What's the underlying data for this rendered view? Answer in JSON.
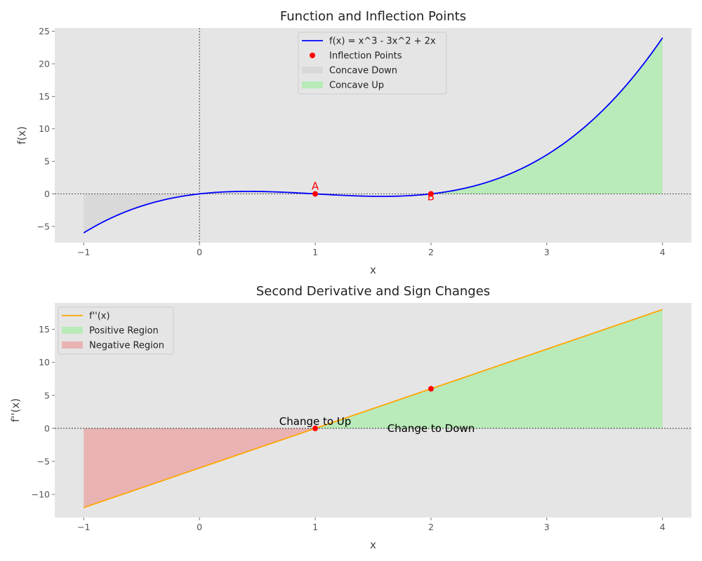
{
  "colors": {
    "axes_bg": "#e5e5e5",
    "f_line": "#0000ff",
    "fpp_line": "#ffa500",
    "inflection": "#ff0000",
    "concave_down": "#d9d9d9",
    "concave_up": "#b9eab9",
    "positive": "#b9eab9",
    "negative": "#e9b3b3"
  },
  "chart_data": [
    {
      "type": "line",
      "title": "Function and Inflection Points",
      "xlabel": "x",
      "ylabel": "f(x)",
      "xlim": [
        -1.25,
        4.25
      ],
      "ylim": [
        -7.5,
        25.5
      ],
      "xticks": [
        -1,
        0,
        1,
        2,
        3,
        4
      ],
      "yticks": [
        -5,
        0,
        5,
        10,
        15,
        20,
        25
      ],
      "tick_labels_x": [
        "−1",
        "0",
        "1",
        "2",
        "3",
        "4"
      ],
      "tick_labels_y": [
        "−5",
        "0",
        "5",
        "10",
        "15",
        "20",
        "25"
      ],
      "grid": false,
      "legend_position": "top-center",
      "series": [
        {
          "name": "f(x) = x^3 - 3x^2 + 2x",
          "kind": "line",
          "x_range": [
            -1,
            4
          ],
          "coefficients": [
            0,
            2,
            -3,
            1
          ]
        },
        {
          "name": "Inflection Points",
          "kind": "scatter",
          "x": [
            1,
            2
          ],
          "y": [
            0,
            0
          ],
          "labels": [
            "A",
            "B"
          ]
        },
        {
          "name": "Concave Down",
          "kind": "fill",
          "x_range": [
            -1,
            1
          ]
        },
        {
          "name": "Concave Up",
          "kind": "fill",
          "x_range": [
            2,
            4
          ]
        }
      ]
    },
    {
      "type": "line",
      "title": "Second Derivative and Sign Changes",
      "xlabel": "x",
      "ylabel": "f''(x)",
      "xlim": [
        -1.25,
        4.25
      ],
      "ylim": [
        -13.5,
        19.0
      ],
      "xticks": [
        -1,
        0,
        1,
        2,
        3,
        4
      ],
      "yticks": [
        -10,
        -5,
        0,
        5,
        10,
        15
      ],
      "tick_labels_x": [
        "−1",
        "0",
        "1",
        "2",
        "3",
        "4"
      ],
      "tick_labels_y": [
        "−10",
        "−5",
        "0",
        "5",
        "10",
        "15"
      ],
      "grid": false,
      "legend_position": "top-left",
      "series": [
        {
          "name": "f''(x)",
          "kind": "line",
          "x_range": [
            -1,
            4
          ],
          "coefficients": [
            -6,
            6
          ]
        },
        {
          "name": "Positive Region",
          "kind": "fill",
          "x_range": [
            1,
            4
          ]
        },
        {
          "name": "Negative Region",
          "kind": "fill",
          "x_range": [
            -1,
            1
          ]
        },
        {
          "kind": "scatter",
          "x": [
            1,
            2
          ],
          "y": [
            0,
            6
          ]
        }
      ],
      "annotations": [
        {
          "text": "Change to Up",
          "x": 1,
          "y": 0
        },
        {
          "text": "Change to Down",
          "x": 2,
          "y": 0
        }
      ]
    }
  ]
}
